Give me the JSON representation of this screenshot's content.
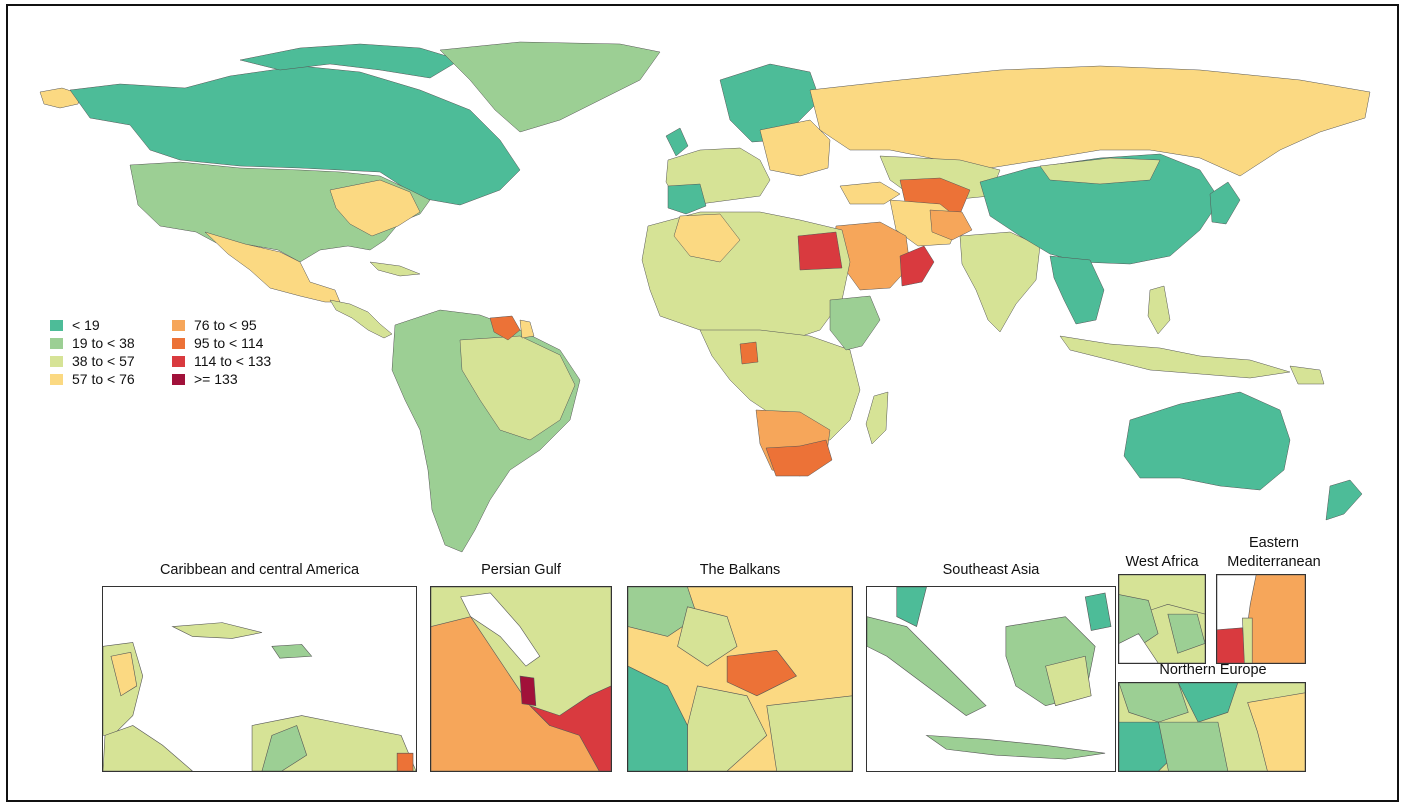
{
  "legend": [
    {
      "label": "< 19",
      "color": "#4dbc98"
    },
    {
      "label": "19 to < 38",
      "color": "#9ccf94"
    },
    {
      "label": "38 to < 57",
      "color": "#d6e396"
    },
    {
      "label": "57 to < 76",
      "color": "#fbd982"
    },
    {
      "label": "76 to < 95",
      "color": "#f6a65a"
    },
    {
      "label": "95 to < 114",
      "color": "#ec7237"
    },
    {
      "label": "114 to < 133",
      "color": "#d93a3f"
    },
    {
      "label": ">= 133",
      "color": "#a1113a"
    }
  ],
  "insets": {
    "caribbean": {
      "title": "Caribbean and central America"
    },
    "persian_gulf": {
      "title": "Persian Gulf"
    },
    "balkans": {
      "title": "The Balkans"
    },
    "southeast_asia": {
      "title": "Southeast Asia"
    },
    "west_africa": {
      "title": "West Africa"
    },
    "eastern_med": {
      "title_line1": "Eastern",
      "title_line2": "Mediterranean"
    },
    "northern_europe": {
      "title": "Northern Europe"
    }
  }
}
